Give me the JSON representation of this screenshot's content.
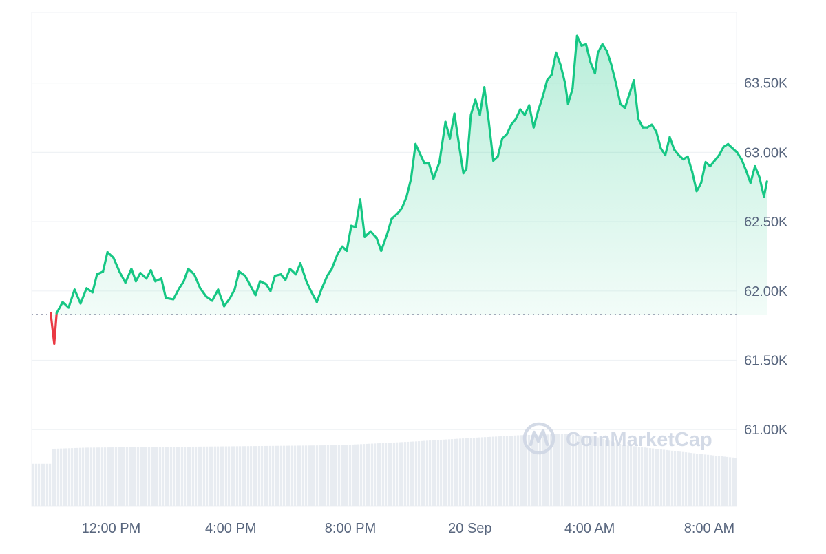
{
  "chart_data": {
    "type": "area",
    "title": "",
    "xlabel": "",
    "ylabel": "",
    "ylim": [
      60450,
      64000
    ],
    "baseline": 61830,
    "grid": true,
    "y_axis_position": "right",
    "x_ticks": [
      {
        "label": "12:00 PM",
        "t": 1.0
      },
      {
        "label": "4:00 PM",
        "t": 5.0
      },
      {
        "label": "8:00 PM",
        "t": 9.0
      },
      {
        "label": "20 Sep",
        "t": 13.0
      },
      {
        "label": "4:00 AM",
        "t": 17.0
      },
      {
        "label": "8:00 AM",
        "t": 21.0
      }
    ],
    "y_ticks": [
      {
        "label": "61.00K",
        "value": 61000
      },
      {
        "label": "61.50K",
        "value": 61500
      },
      {
        "label": "62.00K",
        "value": 62000
      },
      {
        "label": "62.50K",
        "value": 62500
      },
      {
        "label": "63.00K",
        "value": 63000
      },
      {
        "label": "63.50K",
        "value": 63500
      }
    ],
    "series": [
      {
        "points": [
          [
            -0.7,
            61840
          ],
          [
            -0.58,
            61620
          ],
          [
            -0.5,
            61840
          ],
          [
            -0.3,
            61920
          ],
          [
            -0.1,
            61880
          ],
          [
            0.1,
            62010
          ],
          [
            0.3,
            61910
          ],
          [
            0.5,
            62020
          ],
          [
            0.7,
            61990
          ],
          [
            0.85,
            62120
          ],
          [
            1.05,
            62140
          ],
          [
            1.2,
            62280
          ],
          [
            1.4,
            62240
          ],
          [
            1.6,
            62140
          ],
          [
            1.8,
            62060
          ],
          [
            2.0,
            62160
          ],
          [
            2.15,
            62070
          ],
          [
            2.3,
            62130
          ],
          [
            2.5,
            62090
          ],
          [
            2.65,
            62150
          ],
          [
            2.8,
            62070
          ],
          [
            3.0,
            62090
          ],
          [
            3.15,
            61950
          ],
          [
            3.4,
            61940
          ],
          [
            3.6,
            62020
          ],
          [
            3.75,
            62070
          ],
          [
            3.9,
            62160
          ],
          [
            4.1,
            62120
          ],
          [
            4.3,
            62020
          ],
          [
            4.5,
            61960
          ],
          [
            4.7,
            61930
          ],
          [
            4.9,
            62010
          ],
          [
            5.1,
            61890
          ],
          [
            5.3,
            61950
          ],
          [
            5.45,
            62010
          ],
          [
            5.6,
            62140
          ],
          [
            5.8,
            62110
          ],
          [
            6.0,
            62030
          ],
          [
            6.15,
            61970
          ],
          [
            6.3,
            62070
          ],
          [
            6.5,
            62050
          ],
          [
            6.65,
            62000
          ],
          [
            6.8,
            62110
          ],
          [
            7.0,
            62120
          ],
          [
            7.15,
            62080
          ],
          [
            7.3,
            62160
          ],
          [
            7.5,
            62120
          ],
          [
            7.65,
            62200
          ],
          [
            7.85,
            62070
          ],
          [
            8.0,
            62000
          ],
          [
            8.2,
            61920
          ],
          [
            8.35,
            62010
          ],
          [
            8.55,
            62110
          ],
          [
            8.7,
            62160
          ],
          [
            8.9,
            62270
          ],
          [
            9.05,
            62320
          ],
          [
            9.2,
            62290
          ],
          [
            9.35,
            62470
          ],
          [
            9.5,
            62460
          ],
          [
            9.65,
            62660
          ],
          [
            9.8,
            62390
          ],
          [
            10.0,
            62430
          ],
          [
            10.2,
            62380
          ],
          [
            10.35,
            62290
          ],
          [
            10.55,
            62410
          ],
          [
            10.7,
            62520
          ],
          [
            10.9,
            62560
          ],
          [
            11.05,
            62600
          ],
          [
            11.2,
            62680
          ],
          [
            11.35,
            62810
          ],
          [
            11.5,
            63060
          ],
          [
            11.65,
            62990
          ],
          [
            11.8,
            62920
          ],
          [
            11.95,
            62920
          ],
          [
            12.1,
            62810
          ],
          [
            12.3,
            62930
          ],
          [
            12.5,
            63220
          ],
          [
            12.65,
            63100
          ],
          [
            12.8,
            63280
          ],
          [
            12.95,
            63060
          ],
          [
            13.1,
            62850
          ],
          [
            13.2,
            62880
          ],
          [
            13.35,
            63270
          ],
          [
            13.5,
            63380
          ],
          [
            13.65,
            63270
          ],
          [
            13.8,
            63470
          ],
          [
            13.95,
            63220
          ],
          [
            14.1,
            62940
          ],
          [
            14.25,
            62970
          ],
          [
            14.4,
            63100
          ],
          [
            14.55,
            63130
          ],
          [
            14.7,
            63200
          ],
          [
            14.85,
            63240
          ],
          [
            15.0,
            63310
          ],
          [
            15.15,
            63270
          ],
          [
            15.3,
            63340
          ],
          [
            15.45,
            63180
          ],
          [
            15.6,
            63300
          ],
          [
            15.75,
            63400
          ],
          [
            15.9,
            63520
          ],
          [
            16.05,
            63560
          ],
          [
            16.2,
            63720
          ],
          [
            16.35,
            63630
          ],
          [
            16.5,
            63500
          ],
          [
            16.6,
            63350
          ],
          [
            16.75,
            63460
          ],
          [
            16.9,
            63840
          ],
          [
            17.05,
            63770
          ],
          [
            17.2,
            63780
          ],
          [
            17.35,
            63650
          ],
          [
            17.5,
            63570
          ],
          [
            17.6,
            63720
          ],
          [
            17.75,
            63780
          ],
          [
            17.9,
            63730
          ],
          [
            18.05,
            63630
          ],
          [
            18.2,
            63500
          ],
          [
            18.35,
            63350
          ],
          [
            18.5,
            63320
          ],
          [
            18.65,
            63420
          ],
          [
            18.8,
            63520
          ],
          [
            18.95,
            63240
          ],
          [
            19.1,
            63180
          ],
          [
            19.25,
            63180
          ],
          [
            19.4,
            63200
          ],
          [
            19.55,
            63150
          ],
          [
            19.7,
            63030
          ],
          [
            19.85,
            62980
          ],
          [
            20.0,
            63110
          ],
          [
            20.15,
            63020
          ],
          [
            20.3,
            62980
          ],
          [
            20.45,
            62950
          ],
          [
            20.6,
            62970
          ],
          [
            20.75,
            62860
          ],
          [
            20.9,
            62720
          ],
          [
            21.05,
            62780
          ],
          [
            21.2,
            62930
          ],
          [
            21.35,
            62900
          ],
          [
            21.5,
            62940
          ],
          [
            21.65,
            62980
          ],
          [
            21.8,
            63040
          ],
          [
            21.95,
            63060
          ],
          [
            22.1,
            63030
          ],
          [
            22.25,
            63000
          ],
          [
            22.4,
            62950
          ],
          [
            22.55,
            62870
          ],
          [
            22.7,
            62780
          ],
          [
            22.85,
            62900
          ],
          [
            23.0,
            62820
          ],
          [
            23.15,
            62680
          ],
          [
            23.25,
            62790
          ]
        ]
      }
    ],
    "volume_level": [
      [
        -0.7,
        0.46
      ],
      [
        0.5,
        0.47
      ],
      [
        5.0,
        0.48
      ],
      [
        9.0,
        0.49
      ],
      [
        11.5,
        0.52
      ],
      [
        13.5,
        0.55
      ],
      [
        15.0,
        0.57
      ],
      [
        16.5,
        0.58
      ],
      [
        17.5,
        0.56
      ],
      [
        18.5,
        0.49
      ],
      [
        21.0,
        0.42
      ],
      [
        22.5,
        0.38
      ],
      [
        23.25,
        0.34
      ]
    ],
    "colors": {
      "up": "#16c784",
      "down": "#ea3943",
      "grid": "#eff2f5",
      "baseline": "#858ca2",
      "volume": "#e8ecf1",
      "axis_text": "#58667e"
    }
  },
  "watermark": {
    "text": "CoinMarketCap",
    "logo_icon": "coinmarketcap-logo-icon"
  }
}
